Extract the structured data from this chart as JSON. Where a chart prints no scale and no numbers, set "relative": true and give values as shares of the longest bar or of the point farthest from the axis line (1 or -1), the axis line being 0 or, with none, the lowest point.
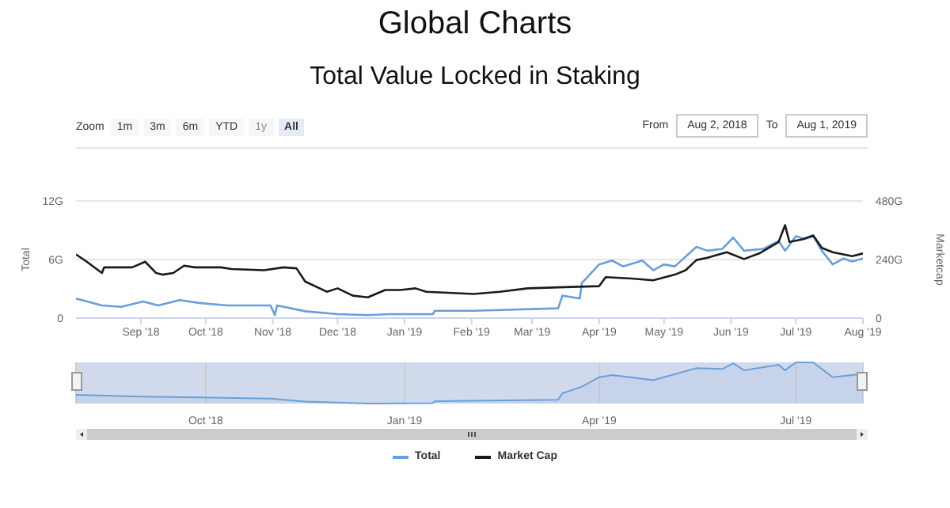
{
  "chart_data": [
    {
      "type": "line",
      "title": "Global Charts",
      "subtitle": "Total Value Locked in Staking",
      "ylabel": "Total",
      "y2label": "Marketcap",
      "annotations": [
        "Zoom",
        "1m",
        "3m",
        "6m",
        "YTD",
        "1y",
        "All",
        "From",
        "Aug 2, 2018",
        "To",
        "Aug 1, 2019"
      ],
      "xlim": [
        "2018-08-02",
        "2019-08-01"
      ],
      "xticks": [
        {
          "value": "2018-09-01",
          "label": "Sep '18"
        },
        {
          "value": "2018-10-01",
          "label": "Oct '18"
        },
        {
          "value": "2018-11-01",
          "label": "Nov '18"
        },
        {
          "value": "2018-12-01",
          "label": "Dec '18"
        },
        {
          "value": "2019-01-01",
          "label": "Jan '19"
        },
        {
          "value": "2019-02-01",
          "label": "Feb '19"
        },
        {
          "value": "2019-03-01",
          "label": "Mar '19"
        },
        {
          "value": "2019-04-01",
          "label": "Apr '19"
        },
        {
          "value": "2019-05-01",
          "label": "May '19"
        },
        {
          "value": "2019-06-01",
          "label": "Jun '19"
        },
        {
          "value": "2019-07-01",
          "label": "Jul '19"
        },
        {
          "value": "2019-08-01",
          "label": "Aug '19"
        }
      ],
      "ylim": [
        0,
        12
      ],
      "yticks": [
        0,
        {
          "value": 6,
          "label": "6G"
        },
        {
          "value": 12,
          "label": "12G"
        }
      ],
      "y2lim": [
        0,
        480
      ],
      "y2ticks": [
        0,
        {
          "value": 240,
          "label": "240G"
        },
        {
          "value": 480,
          "label": "480G"
        }
      ],
      "grid": "y",
      "legend": "bottom",
      "marker": "none",
      "line_style": "solid",
      "series": [
        {
          "name": "Total",
          "color": "#6a9fd8",
          "x": [
            "2018-08-02",
            "2018-08-14",
            "2018-08-23",
            "2018-09-02",
            "2018-09-09",
            "2018-09-19",
            "2018-09-28",
            "2018-10-11",
            "2018-10-31",
            "2018-11-02",
            "2018-11-03",
            "2018-11-16",
            "2018-12-01",
            "2018-12-15",
            "2018-12-25",
            "2019-01-14",
            "2019-01-15",
            "2019-02-02",
            "2019-03-13",
            "2019-03-15",
            "2019-03-23",
            "2019-03-24",
            "2019-04-01",
            "2019-04-07",
            "2019-04-12",
            "2019-04-21",
            "2019-04-26",
            "2019-05-01",
            "2019-05-06",
            "2019-05-16",
            "2019-05-21",
            "2019-05-28",
            "2019-06-02",
            "2019-06-07",
            "2019-06-16",
            "2019-06-23",
            "2019-06-26",
            "2019-07-01",
            "2019-07-05",
            "2019-07-09",
            "2019-07-13",
            "2019-07-18",
            "2019-07-23",
            "2019-07-27",
            "2019-08-01"
          ],
          "values": [
            2.0,
            1.3,
            1.15,
            1.7,
            1.3,
            1.85,
            1.55,
            1.3,
            1.3,
            0.3,
            1.3,
            0.7,
            0.4,
            0.3,
            0.4,
            0.4,
            0.75,
            0.75,
            1.0,
            2.3,
            2.0,
            3.6,
            5.5,
            5.9,
            5.3,
            5.9,
            4.9,
            5.5,
            5.3,
            7.3,
            6.9,
            7.1,
            8.25,
            6.9,
            7.1,
            7.9,
            6.9,
            8.4,
            8.1,
            8.4,
            6.9,
            5.5,
            6.1,
            5.8,
            6.1
          ]
        },
        {
          "name": "Market Cap",
          "color": "#1a1a1a",
          "axis": "y2",
          "x": [
            "2018-08-02",
            "2018-08-07",
            "2018-08-14",
            "2018-08-15",
            "2018-08-28",
            "2018-09-03",
            "2018-09-08",
            "2018-09-11",
            "2018-09-16",
            "2018-09-21",
            "2018-09-26",
            "2018-10-08",
            "2018-10-13",
            "2018-10-28",
            "2018-11-06",
            "2018-11-12",
            "2018-11-16",
            "2018-11-26",
            "2018-12-01",
            "2018-12-08",
            "2018-12-15",
            "2018-12-23",
            "2018-12-30",
            "2019-01-06",
            "2019-01-11",
            "2019-02-02",
            "2019-02-14",
            "2019-02-27",
            "2019-03-16",
            "2019-04-01",
            "2019-04-04",
            "2019-04-16",
            "2019-04-26",
            "2019-05-06",
            "2019-05-11",
            "2019-05-16",
            "2019-05-21",
            "2019-05-30",
            "2019-06-07",
            "2019-06-14",
            "2019-06-23",
            "2019-06-26",
            "2019-06-28",
            "2019-07-04",
            "2019-07-09",
            "2019-07-13",
            "2019-07-18",
            "2019-07-23",
            "2019-07-27",
            "2019-08-01"
          ],
          "values": [
            261,
            231,
            185,
            208,
            208,
            231,
            185,
            178,
            185,
            215,
            208,
            208,
            201,
            196,
            208,
            204,
            150,
            108,
            122,
            92,
            85,
            115,
            115,
            122,
            108,
            99,
            108,
            122,
            127,
            131,
            168,
            162,
            155,
            178,
            196,
            238,
            247,
            270,
            242,
            265,
            312,
            381,
            312,
            323,
            339,
            288,
            270,
            261,
            254,
            265
          ]
        }
      ]
    },
    {
      "type": "area",
      "relative": true,
      "tick_labels": "x",
      "grid": "x",
      "xlim": [
        "2018-08-02",
        "2019-08-01"
      ],
      "xticks": [
        {
          "value": "2018-10-01",
          "label": "Oct '18"
        },
        {
          "value": "2019-01-01",
          "label": "Jan '19"
        },
        {
          "value": "2019-04-01",
          "label": "Apr '19"
        },
        {
          "value": "2019-07-01",
          "label": "Jul '19"
        }
      ],
      "series": [
        {
          "color": "#6a9fd8",
          "x": [
            "2018-08-02",
            "2018-09-02",
            "2018-09-28",
            "2018-10-31",
            "2018-11-16",
            "2018-12-15",
            "2019-01-14",
            "2019-01-15",
            "2019-03-13",
            "2019-03-15",
            "2019-03-24",
            "2019-04-01",
            "2019-04-07",
            "2019-04-26",
            "2019-05-16",
            "2019-05-28",
            "2019-06-02",
            "2019-06-07",
            "2019-06-23",
            "2019-06-26",
            "2019-07-01",
            "2019-07-09",
            "2019-07-18",
            "2019-08-01"
          ],
          "values": [
            0.21,
            0.17,
            0.15,
            0.12,
            0.05,
            0,
            0.01,
            0.06,
            0.09,
            0.25,
            0.41,
            0.64,
            0.69,
            0.57,
            0.86,
            0.84,
            0.98,
            0.81,
            0.94,
            0.81,
            1,
            1,
            0.64,
            0.72
          ]
        }
      ]
    }
  ]
}
